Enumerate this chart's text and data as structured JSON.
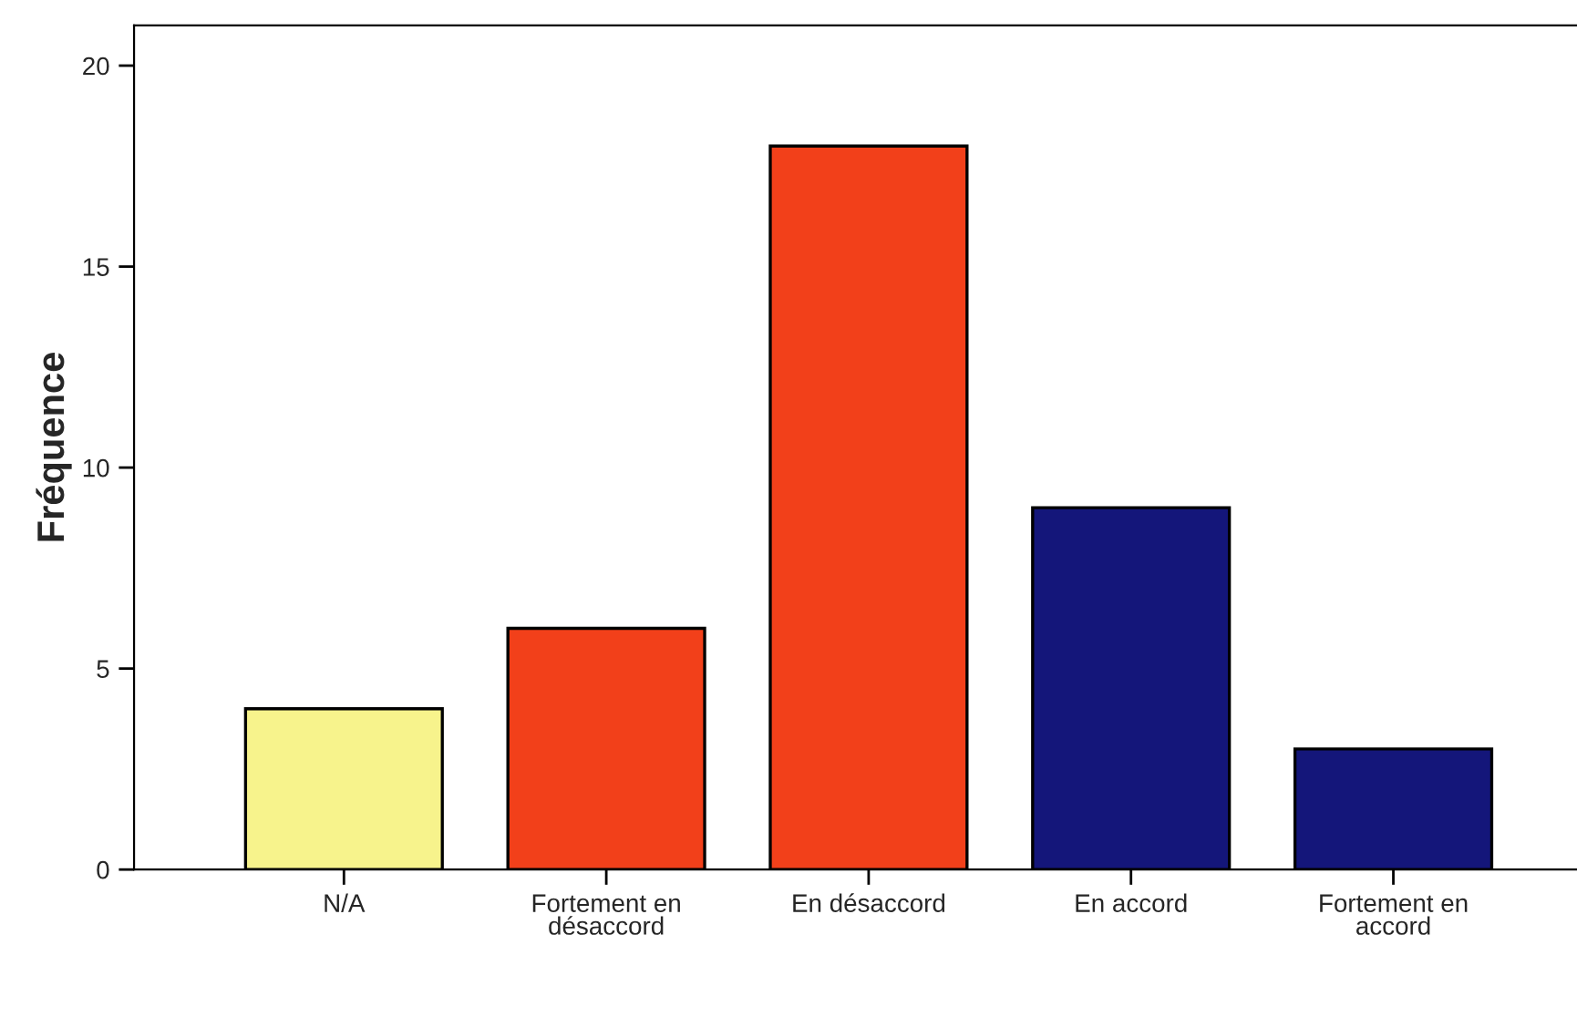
{
  "chart_data": {
    "type": "bar",
    "ylabel": "Fréquence",
    "categories": [
      "N/A",
      "Fortement en\ndésaccord",
      "En désaccord",
      "En accord",
      "Fortement en\naccord"
    ],
    "values": [
      4,
      6,
      18,
      9,
      3
    ],
    "colors": [
      "#f7f38c",
      "#f2401a",
      "#f2401a",
      "#14167a",
      "#14167a"
    ],
    "ylim": [
      0,
      21
    ],
    "yticks": [
      0,
      5,
      10,
      15,
      20
    ],
    "grid": false,
    "legend": false
  }
}
